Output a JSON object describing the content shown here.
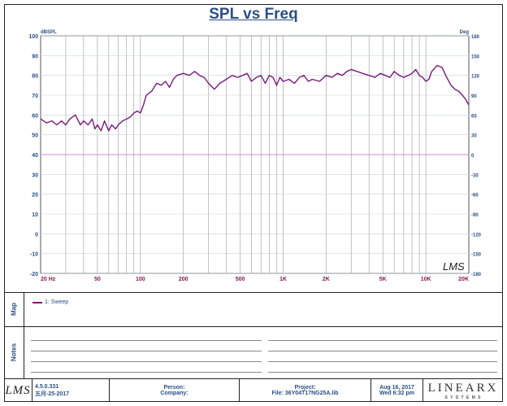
{
  "chart_data": {
    "type": "line",
    "title": "SPL vs Freq",
    "y_left_label": "dBSPL",
    "y_right_label": "Deg",
    "xscale": "log",
    "xlim": [
      20,
      20000
    ],
    "ylim": [
      -20,
      100
    ],
    "y2lim": [
      -180,
      180
    ],
    "grid": true,
    "y_ticks": [
      100,
      90,
      80,
      70,
      60,
      50,
      40,
      30,
      20,
      10,
      0,
      -10,
      -20
    ],
    "y2_ticks": [
      180,
      150,
      120,
      90,
      60,
      30,
      0,
      -30,
      -60,
      -90,
      -120,
      -150,
      -180
    ],
    "x_ticks": [
      {
        "value": 20,
        "label": "20 Hz"
      },
      {
        "value": 50,
        "label": "50"
      },
      {
        "value": 100,
        "label": "100"
      },
      {
        "value": 200,
        "label": "200"
      },
      {
        "value": 500,
        "label": "500"
      },
      {
        "value": 1000,
        "label": "1K"
      },
      {
        "value": 2000,
        "label": "2K"
      },
      {
        "value": 5000,
        "label": "5K"
      },
      {
        "value": 10000,
        "label": "10K"
      },
      {
        "value": 20000,
        "label": "20K"
      }
    ],
    "reference_line": {
      "y": 40,
      "color": "#d58ad5"
    },
    "series": [
      {
        "name": "1: Sweep",
        "color": "#7a1a7a",
        "x": [
          20,
          22,
          24,
          26,
          28,
          30,
          32,
          35,
          38,
          40,
          43,
          46,
          48,
          50,
          53,
          56,
          60,
          63,
          67,
          70,
          75,
          80,
          85,
          90,
          95,
          100,
          105,
          110,
          120,
          130,
          140,
          150,
          160,
          170,
          180,
          200,
          220,
          240,
          260,
          280,
          300,
          330,
          360,
          400,
          440,
          480,
          520,
          560,
          600,
          650,
          700,
          750,
          800,
          850,
          900,
          950,
          1000,
          1100,
          1200,
          1300,
          1400,
          1500,
          1600,
          1800,
          2000,
          2200,
          2400,
          2600,
          2800,
          3000,
          3300,
          3600,
          4000,
          4400,
          4800,
          5200,
          5600,
          6000,
          6500,
          7000,
          7500,
          8000,
          8500,
          9000,
          9500,
          10000,
          10500,
          11000,
          12000,
          13000,
          14000,
          15000,
          16000,
          17000,
          18000,
          19000,
          20000
        ],
        "y": [
          58,
          56,
          57,
          55,
          57,
          55,
          58,
          60,
          55,
          57,
          55,
          58,
          53,
          55,
          52,
          57,
          52,
          55,
          53,
          55,
          57,
          58,
          59,
          61,
          62,
          61,
          65,
          70,
          72,
          76,
          75,
          77,
          74,
          78,
          80,
          81,
          80,
          82,
          80,
          79,
          76,
          73,
          76,
          78,
          80,
          79,
          80,
          81,
          77,
          79,
          80,
          76,
          80,
          79,
          75,
          79,
          77,
          78,
          76,
          79,
          80,
          77,
          78,
          77,
          80,
          79,
          81,
          80,
          82,
          83,
          82,
          81,
          80,
          79,
          81,
          80,
          79,
          82,
          80,
          79,
          80,
          81,
          83,
          80,
          79,
          77,
          78,
          82,
          85,
          84,
          79,
          75,
          73,
          72,
          70,
          68,
          65
        ]
      }
    ]
  },
  "map_label": "Map",
  "notes_label": "Notes",
  "legend_entry": "1: Sweep",
  "footer": {
    "version": "4.5.0.331",
    "date_cn": "五月-25-2017",
    "person_label": "Person:",
    "company_label": "Company:",
    "project_label": "Project:",
    "file_label": "File: 36Y04T17NG25A.lib",
    "date_line1": "Aug 16, 2017",
    "date_line2": "Wed  6:32 pm",
    "brand_main": "LINEARX",
    "brand_sub": "S Y S T E M S"
  },
  "watermark": "LMS"
}
